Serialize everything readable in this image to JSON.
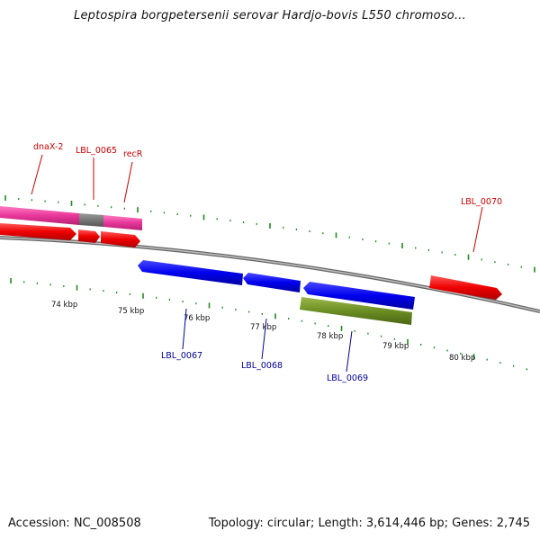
{
  "title": "Leptospira borgpetersenii serovar Hardjo-bovis L550 chromoso...",
  "footer": {
    "accession": "Accession: NC_008508",
    "summary": "Topology: circular; Length: 3,614,446 bp; Genes: 2,745"
  },
  "colors": {
    "backbone": "#888888",
    "tick": "#1e8a1e",
    "forward_gene": "#ee0000",
    "reverse_gene": "#0000dd",
    "pink_feature": "#e8389a",
    "gray_feature": "#777777",
    "olive_feature": "#6b8e23",
    "label_red": "#cc0000",
    "label_blue": "#000099"
  },
  "kbp_labels": [
    "74 kbp",
    "75 kbp",
    "76 kbp",
    "77 kbp",
    "78 kbp",
    "79 kbp",
    "80 kbp"
  ],
  "gene_labels_top": [
    "dnaX-2",
    "LBL_0065",
    "recR",
    "LBL_0070"
  ],
  "gene_labels_bottom": [
    "LBL_0067",
    "LBL_0068",
    "LBL_0069"
  ]
}
